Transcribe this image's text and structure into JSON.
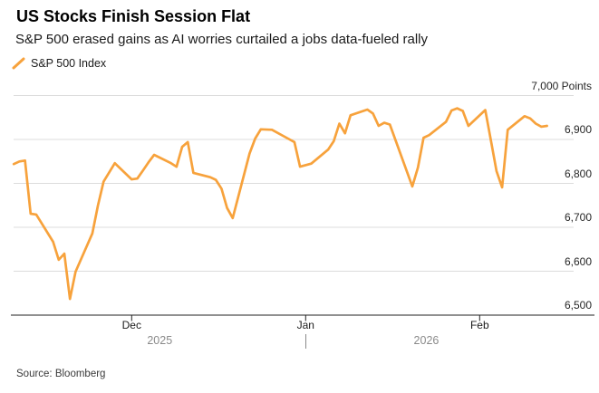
{
  "header": {
    "title": "US Stocks Finish Session Flat",
    "subtitle": "S&P 500 erased gains as AI worries curtailed a jobs data-fueled rally"
  },
  "legend": {
    "label": "S&P 500 Index"
  },
  "source": "Source: Bloomberg",
  "colors": {
    "line": "#F7A23C",
    "grid": "#DCDCDC",
    "axis": "#222222",
    "month_text": "#1a1a1a",
    "year_text": "#8A8A8A"
  },
  "chart_data": {
    "type": "line",
    "title": "US Stocks Finish Session Flat",
    "series_name": "S&P 500 Index",
    "unit": "Points",
    "ylim": [
      6500,
      7000
    ],
    "grid": true,
    "legend_position": "top-left",
    "y_ticks": [
      {
        "value": 7000,
        "label": "7,000 Points"
      },
      {
        "value": 6900,
        "label": "6,900"
      },
      {
        "value": 6800,
        "label": "6,800"
      },
      {
        "value": 6700,
        "label": "6,700"
      },
      {
        "value": 6600,
        "label": "6,600"
      },
      {
        "value": 6500,
        "label": "6,500"
      }
    ],
    "x_ticks": [
      {
        "label": "Dec",
        "date": "Dec 1"
      },
      {
        "label": "Jan",
        "date": "Jan 1"
      },
      {
        "label": "Feb",
        "date": "Feb 1"
      }
    ],
    "year_labels": [
      "2025",
      "2026"
    ],
    "year_separator_date": "Jan 1",
    "points": [
      [
        "Nov 10",
        6844
      ],
      [
        "Nov 11",
        6850
      ],
      [
        "Nov 12",
        6852
      ],
      [
        "Nov 13",
        6731
      ],
      [
        "Nov 14",
        6729
      ],
      [
        "Nov 17",
        6667
      ],
      [
        "Nov 18",
        6626
      ],
      [
        "Nov 19",
        6640
      ],
      [
        "Nov 20",
        6537
      ],
      [
        "Nov 21",
        6599
      ],
      [
        "Nov 24",
        6686
      ],
      [
        "Nov 25",
        6750
      ],
      [
        "Nov 26",
        6804
      ],
      [
        "Nov 28",
        6846
      ],
      [
        "Dec 1",
        6809
      ],
      [
        "Dec 2",
        6811
      ],
      [
        "Dec 3",
        6829
      ],
      [
        "Dec 4",
        6848
      ],
      [
        "Dec 5",
        6865
      ],
      [
        "Dec 8",
        6846
      ],
      [
        "Dec 9",
        6838
      ],
      [
        "Dec 10",
        6883
      ],
      [
        "Dec 11",
        6894
      ],
      [
        "Dec 12",
        6824
      ],
      [
        "Dec 15",
        6814
      ],
      [
        "Dec 16",
        6808
      ],
      [
        "Dec 17",
        6788
      ],
      [
        "Dec 18",
        6744
      ],
      [
        "Dec 19",
        6721
      ],
      [
        "Dec 22",
        6868
      ],
      [
        "Dec 23",
        6902
      ],
      [
        "Dec 24",
        6923
      ],
      [
        "Dec 26",
        6922
      ],
      [
        "Dec 29",
        6901
      ],
      [
        "Dec 30",
        6894
      ],
      [
        "Dec 31",
        6838
      ],
      [
        "Jan 2",
        6845
      ],
      [
        "Jan 5",
        6877
      ],
      [
        "Jan 6",
        6896
      ],
      [
        "Jan 7",
        6936
      ],
      [
        "Jan 8",
        6914
      ],
      [
        "Jan 9",
        6955
      ],
      [
        "Jan 12",
        6968
      ],
      [
        "Jan 13",
        6959
      ],
      [
        "Jan 14",
        6931
      ],
      [
        "Jan 15",
        6938
      ],
      [
        "Jan 16",
        6934
      ],
      [
        "Jan 20",
        6793
      ],
      [
        "Jan 21",
        6836
      ],
      [
        "Jan 22",
        6904
      ],
      [
        "Jan 23",
        6910
      ],
      [
        "Jan 26",
        6940
      ],
      [
        "Jan 27",
        6966
      ],
      [
        "Jan 28",
        6971
      ],
      [
        "Jan 29",
        6965
      ],
      [
        "Jan 30",
        6931
      ],
      [
        "Feb 2",
        6967
      ],
      [
        "Feb 3",
        6898
      ],
      [
        "Feb 4",
        6828
      ],
      [
        "Feb 5",
        6791
      ],
      [
        "Feb 6",
        6922
      ],
      [
        "Feb 9",
        6953
      ],
      [
        "Feb 10",
        6948
      ],
      [
        "Feb 11",
        6936
      ],
      [
        "Feb 12",
        6929
      ],
      [
        "Feb 13",
        6931
      ]
    ]
  }
}
